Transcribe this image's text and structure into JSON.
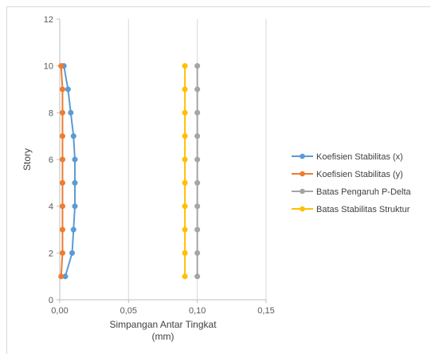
{
  "chart_data": {
    "type": "line",
    "xlabel_line1": "Simpangan Antar Tingkat",
    "xlabel_line2": "(mm)",
    "ylabel": "Story",
    "xlim": [
      0,
      0.15
    ],
    "ylim": [
      0,
      12
    ],
    "xticks": [
      0,
      0.05,
      0.1,
      0.15
    ],
    "xtick_labels": [
      "0,00",
      "0,05",
      "0,10",
      "0,15"
    ],
    "yticks": [
      0,
      2,
      4,
      6,
      8,
      10,
      12
    ],
    "ytick_labels": [
      "0",
      "2",
      "4",
      "6",
      "8",
      "10",
      "12"
    ],
    "grid": "vertical",
    "legend_position": "right",
    "series": [
      {
        "name": "Koefisien Stabilitas (x)",
        "color": "#5b9bd5",
        "x": [
          0.004,
          0.009,
          0.01,
          0.011,
          0.011,
          0.011,
          0.01,
          0.008,
          0.006,
          0.003
        ],
        "y": [
          1,
          2,
          3,
          4,
          5,
          6,
          7,
          8,
          9,
          10
        ]
      },
      {
        "name": "Koefisien Stabilitas (y)",
        "color": "#ed7d31",
        "x": [
          0.001,
          0.002,
          0.002,
          0.002,
          0.002,
          0.002,
          0.002,
          0.002,
          0.002,
          0.001
        ],
        "y": [
          1,
          2,
          3,
          4,
          5,
          6,
          7,
          8,
          9,
          10
        ]
      },
      {
        "name": "Batas Pengaruh P-Delta",
        "color": "#a5a5a5",
        "x": [
          0.1,
          0.1,
          0.1,
          0.1,
          0.1,
          0.1,
          0.1,
          0.1,
          0.1,
          0.1
        ],
        "y": [
          1,
          2,
          3,
          4,
          5,
          6,
          7,
          8,
          9,
          10
        ]
      },
      {
        "name": "Batas Stabilitas Struktur",
        "color": "#ffc000",
        "x": [
          0.091,
          0.091,
          0.091,
          0.091,
          0.091,
          0.091,
          0.091,
          0.091,
          0.091,
          0.091
        ],
        "y": [
          1,
          2,
          3,
          4,
          5,
          6,
          7,
          8,
          9,
          10
        ]
      }
    ]
  }
}
